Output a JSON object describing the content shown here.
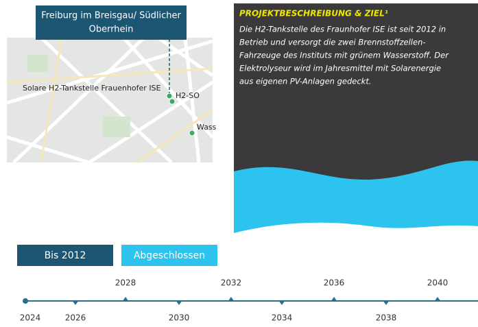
{
  "map": {
    "header": [
      "Freiburg im Breisgau/ Südlicher",
      "Oberrhein"
    ],
    "site_label": "Solare H2-Tankstelle Frauenhofer ISE",
    "poi_labels": [
      "H2-SO",
      "Wass"
    ]
  },
  "project": {
    "title": "PROJEKTBESCHREIBUNG & ZIEL¹",
    "body": [
      "Die H2-Tankstelle des Fraunhofer ISE ist seit 2012 in",
      "Betrieb und versorgt die zwei Brennstoffzellen-",
      "Fahrzeuge des Instituts mit grünem Wasserstoff. Der",
      "Elektrolyseur wird im Jahresmittel mit Solarenergie",
      "aus eigenen PV-Anlagen gedeckt."
    ]
  },
  "status": {
    "since": "Bis 2012",
    "state": "Abgeschlossen"
  },
  "timeline": {
    "years": [
      "2024",
      "2026",
      "2028",
      "2030",
      "2032",
      "2034",
      "2036",
      "2038",
      "2040"
    ]
  }
}
